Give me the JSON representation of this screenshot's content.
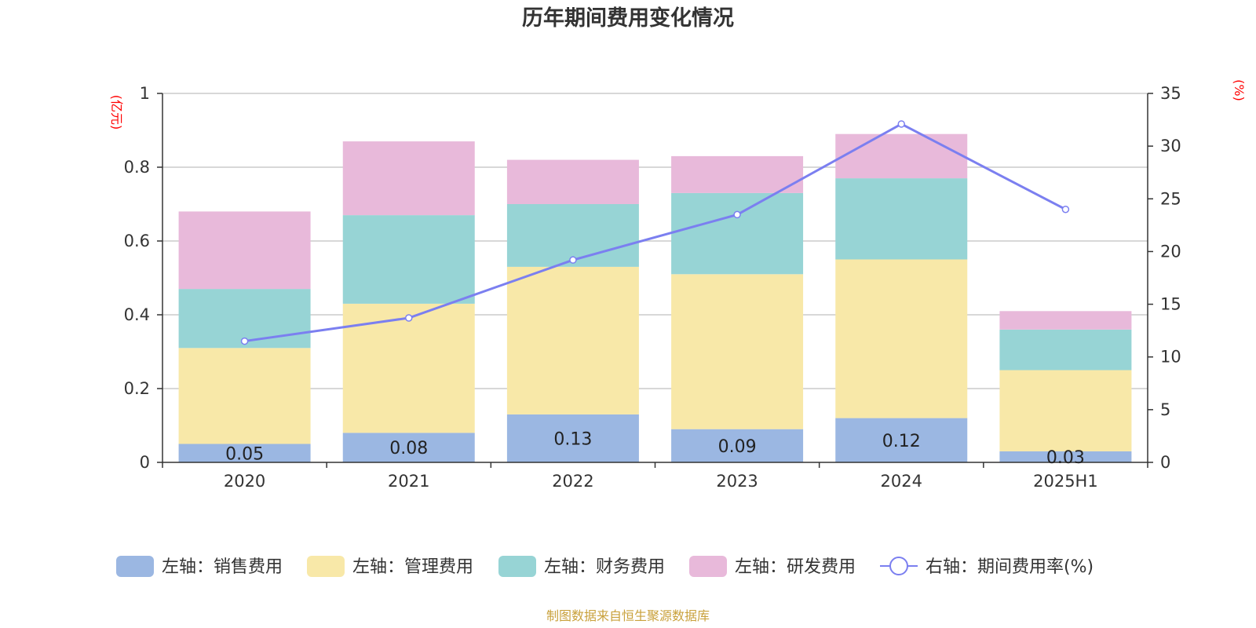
{
  "chart_data": {
    "type": "bar",
    "title": "历年期间费用变化情况",
    "categories": [
      "2020",
      "2021",
      "2022",
      "2023",
      "2024",
      "2025H1"
    ],
    "left_axis": {
      "unit": "(亿元)",
      "ylim": [
        0,
        1
      ],
      "ticks": [
        "0",
        "0.2",
        "0.4",
        "0.6",
        "0.8",
        "1"
      ]
    },
    "right_axis": {
      "unit": "(%)",
      "ylim": [
        0,
        35
      ],
      "ticks": [
        "0",
        "5",
        "10",
        "15",
        "20",
        "25",
        "30",
        "35"
      ]
    },
    "stacked": true,
    "grid": true,
    "legend_position": "bottom",
    "series": [
      {
        "name": "左轴：销售费用",
        "kind": "bar",
        "axis": "left",
        "color": "#9bb7e2",
        "values": [
          0.05,
          0.08,
          0.13,
          0.09,
          0.12,
          0.03
        ],
        "labels": [
          "0.05",
          "0.08",
          "0.13",
          "0.09",
          "0.12",
          "0.03"
        ]
      },
      {
        "name": "左轴：管理费用",
        "kind": "bar",
        "axis": "left",
        "color": "#f8e8a8",
        "values": [
          0.26,
          0.35,
          0.4,
          0.42,
          0.43,
          0.22
        ]
      },
      {
        "name": "左轴：财务费用",
        "kind": "bar",
        "axis": "left",
        "color": "#97d4d5",
        "values": [
          0.16,
          0.24,
          0.17,
          0.22,
          0.22,
          0.11
        ]
      },
      {
        "name": "左轴：研发费用",
        "kind": "bar",
        "axis": "left",
        "color": "#e8b9da",
        "values": [
          0.21,
          0.2,
          0.12,
          0.1,
          0.12,
          0.05
        ]
      },
      {
        "name": "右轴：期间费用率(%)",
        "kind": "line",
        "axis": "right",
        "color": "#7b7ff0",
        "values": [
          11.5,
          13.7,
          19.2,
          23.5,
          32.1,
          24.0
        ]
      }
    ],
    "source": "制图数据来自恒生聚源数据库"
  }
}
